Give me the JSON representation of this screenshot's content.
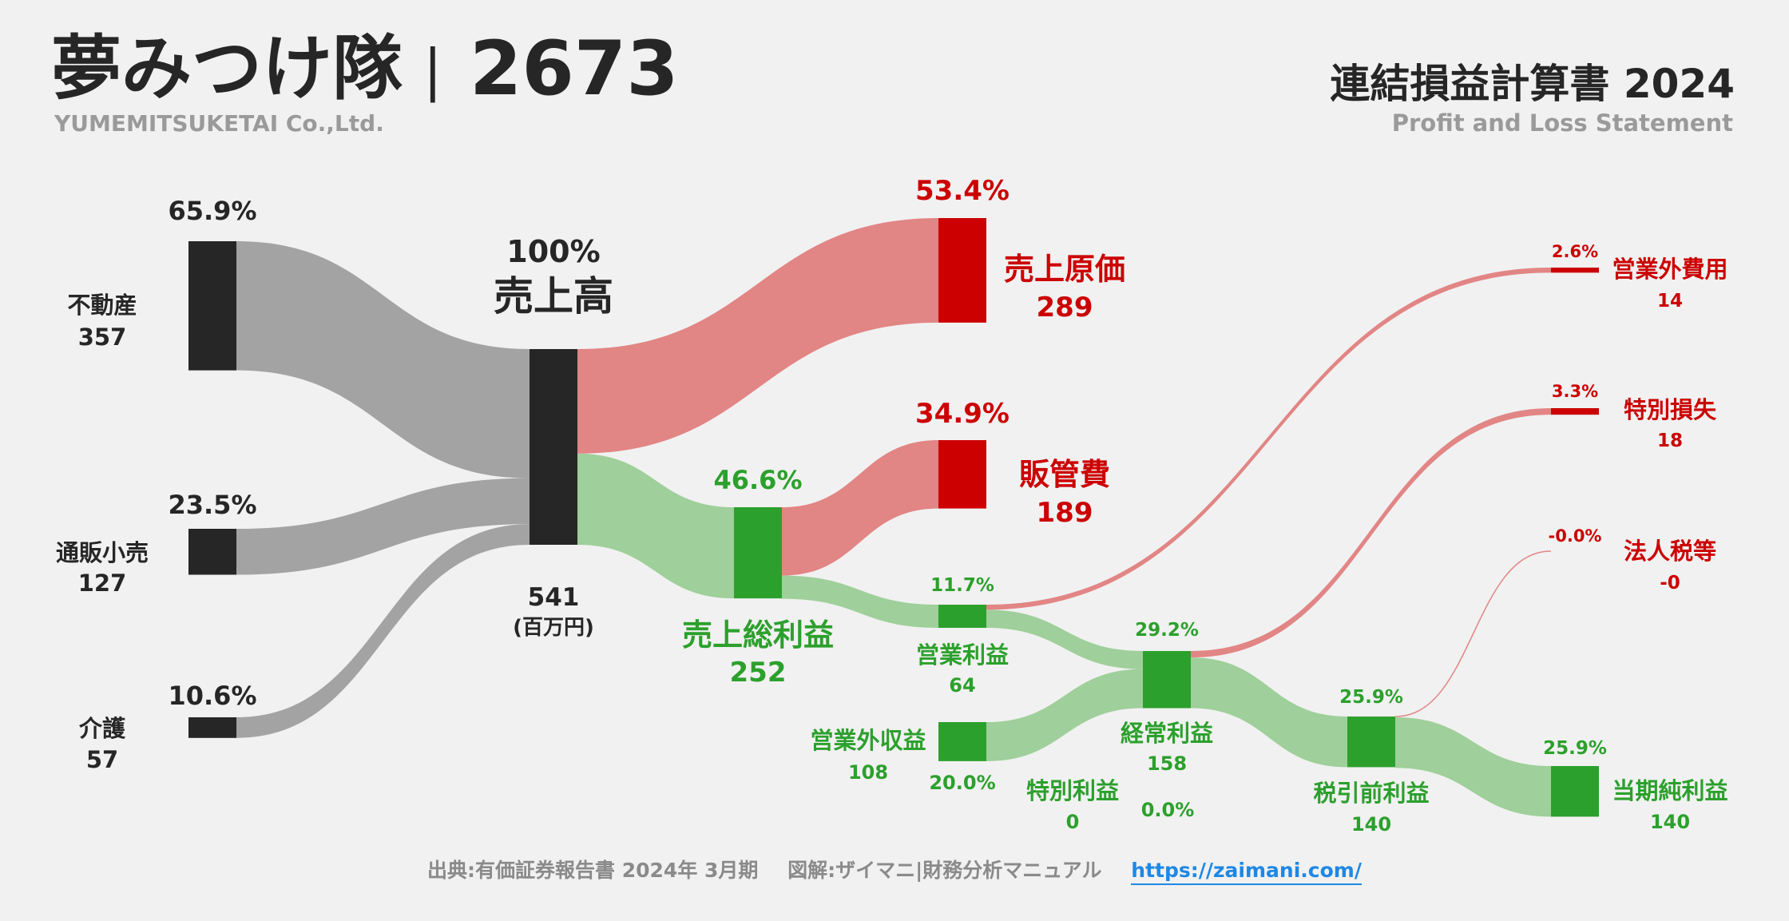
{
  "header": {
    "company_jp": "夢みつけ隊",
    "separator": "|",
    "code": "2673",
    "company_en": "YUMEMITSUKETAI Co.,Ltd.",
    "statement_jp": "連結損益計算書 2024",
    "statement_en": "Profit and Loss Statement"
  },
  "footer": {
    "source": "出典:有価証券報告書 2024年 3月期",
    "credit": "図解:ザイマニ|財務分析マニュアル",
    "url": "https://zaimani.com/"
  },
  "colors": {
    "dark": "#262626",
    "gray_flow": "#a3a3a3",
    "red": "#cc0000",
    "red_flow": "#e28585",
    "green": "#2ca02c",
    "green_flow": "#9fcf9a"
  },
  "unit": "(百万円)",
  "chart_data": {
    "type": "sankey",
    "nodes": [
      {
        "id": "fudousan",
        "label": "不動産",
        "value": 357,
        "pct": "65.9%"
      },
      {
        "id": "tsuhan",
        "label": "通販小売",
        "value": 127,
        "pct": "23.5%"
      },
      {
        "id": "kaigo",
        "label": "介護",
        "value": 57,
        "pct": "10.6%"
      },
      {
        "id": "revenue",
        "label": "売上高",
        "value": 541,
        "pct": "100%"
      },
      {
        "id": "cogs",
        "label": "売上原価",
        "value": 289,
        "pct": "53.4%"
      },
      {
        "id": "gross",
        "label": "売上総利益",
        "value": 252,
        "pct": "46.6%"
      },
      {
        "id": "sga",
        "label": "販管費",
        "value": 189,
        "pct": "34.9%"
      },
      {
        "id": "op",
        "label": "営業利益",
        "value": 64,
        "pct": "11.7%"
      },
      {
        "id": "nonop_inc",
        "label": "営業外収益",
        "value": 108,
        "pct": "20.0%"
      },
      {
        "id": "nonop_exp",
        "label": "営業外費用",
        "value": 14,
        "pct": "2.6%"
      },
      {
        "id": "ordinary",
        "label": "経常利益",
        "value": 158,
        "pct": "29.2%"
      },
      {
        "id": "sp_gain",
        "label": "特別利益",
        "value": 0,
        "pct": "0.0%"
      },
      {
        "id": "sp_loss",
        "label": "特別損失",
        "value": 18,
        "pct": "3.3%"
      },
      {
        "id": "pretax",
        "label": "税引前利益",
        "value": 140,
        "pct": "25.9%"
      },
      {
        "id": "tax",
        "label": "法人税等",
        "value": "-0",
        "pct": "-0.0%"
      },
      {
        "id": "net",
        "label": "当期純利益",
        "value": 140,
        "pct": "25.9%"
      }
    ],
    "links": [
      {
        "from": "fudousan",
        "to": "revenue",
        "value": 357
      },
      {
        "from": "tsuhan",
        "to": "revenue",
        "value": 127
      },
      {
        "from": "kaigo",
        "to": "revenue",
        "value": 57
      },
      {
        "from": "revenue",
        "to": "cogs",
        "value": 289
      },
      {
        "from": "revenue",
        "to": "gross",
        "value": 252
      },
      {
        "from": "gross",
        "to": "sga",
        "value": 189
      },
      {
        "from": "gross",
        "to": "op",
        "value": 64
      },
      {
        "from": "op",
        "to": "nonop_exp",
        "value": 14
      },
      {
        "from": "op",
        "to": "ordinary",
        "value": 50
      },
      {
        "from": "nonop_inc",
        "to": "ordinary",
        "value": 108
      },
      {
        "from": "ordinary",
        "to": "sp_loss",
        "value": 18
      },
      {
        "from": "ordinary",
        "to": "pretax",
        "value": 140
      },
      {
        "from": "pretax",
        "to": "tax",
        "value": 0
      },
      {
        "from": "pretax",
        "to": "net",
        "value": 140
      }
    ]
  }
}
